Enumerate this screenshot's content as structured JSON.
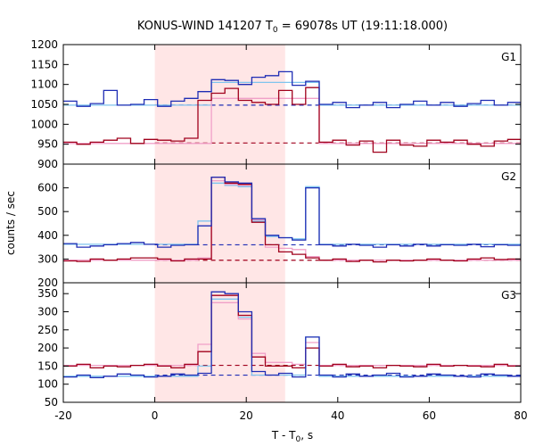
{
  "chart_data": {
    "type": "line",
    "title_main": "KONUS-WIND 141207 T",
    "title_sub": "0",
    "title_rest": " = 69078s UT (19:11:18.000)",
    "xlabel_main": "T - T",
    "xlabel_sub": "0",
    "xlabel_rest": ", s",
    "ylabel": "counts / sec",
    "xlim": [
      -20,
      80
    ],
    "x_ticks": [
      "-20",
      "0",
      "20",
      "40",
      "60",
      "80"
    ],
    "highlight_interval": [
      0,
      28.5
    ],
    "colors": {
      "dark_blue": "#1f2db4",
      "dark_red": "#a0001c",
      "light_blue": "#7fc4ee",
      "pink": "#f0a0c8",
      "highlight": "#ffe6e6"
    },
    "bin_width": 2.944,
    "bin_start": -20,
    "panels": [
      {
        "label": "G1",
        "ylim": [
          900,
          1200
        ],
        "y_ticks": [
          "900",
          "950",
          "1000",
          "1050",
          "1100",
          "1150",
          "1200"
        ],
        "background": {
          "dark_blue": 1048,
          "dark_red": 953
        },
        "series": {
          "dark_blue": [
            1058,
            1045,
            1052,
            1085,
            1048,
            1050,
            1062,
            1045,
            1058,
            1065,
            1082,
            1112,
            1110,
            1100,
            1118,
            1122,
            1132,
            1098,
            1108,
            1050,
            1055,
            1042,
            1048,
            1055,
            1042,
            1050,
            1058,
            1048,
            1055,
            1045,
            1052,
            1060,
            1048,
            1055,
            1042,
            1050
          ],
          "dark_red": [
            955,
            950,
            955,
            960,
            965,
            952,
            962,
            960,
            958,
            965,
            1060,
            1078,
            1090,
            1060,
            1055,
            1050,
            1085,
            1050,
            1092,
            955,
            960,
            948,
            958,
            930,
            960,
            948,
            945,
            960,
            955,
            960,
            950,
            945,
            958,
            962,
            960,
            952
          ],
          "light_blue": [
            1048,
            1048,
            1048,
            1048,
            1048,
            1048,
            1048,
            1048,
            1048,
            1048,
            1048,
            1105,
            1105,
            1105,
            1105,
            1105,
            1105,
            1105,
            1105,
            1048,
            1048,
            1048,
            1048,
            1048,
            1048,
            1048,
            1048,
            1048,
            1048,
            1048,
            1048,
            1048,
            1048,
            1048,
            1048,
            1048
          ],
          "pink": [
            952,
            952,
            952,
            952,
            952,
            952,
            952,
            952,
            952,
            952,
            952,
            1065,
            1065,
            1065,
            1065,
            1065,
            1065,
            1065,
            1065,
            952,
            952,
            952,
            952,
            952,
            952,
            952,
            952,
            952,
            952,
            952,
            952,
            952,
            952,
            952,
            952,
            952
          ]
        }
      },
      {
        "label": "G2",
        "ylim": [
          200,
          700
        ],
        "y_ticks": [
          "200",
          "300",
          "400",
          "500",
          "600"
        ],
        "background": {
          "dark_blue": 360,
          "dark_red": 295
        },
        "series": {
          "dark_blue": [
            365,
            350,
            355,
            360,
            365,
            370,
            362,
            350,
            358,
            360,
            440,
            645,
            625,
            620,
            470,
            400,
            390,
            380,
            600,
            360,
            355,
            362,
            358,
            350,
            360,
            355,
            362,
            355,
            360,
            358,
            362,
            352,
            360,
            358,
            365,
            360
          ],
          "dark_red": [
            292,
            290,
            300,
            295,
            300,
            305,
            305,
            300,
            292,
            300,
            300,
            645,
            620,
            615,
            455,
            360,
            330,
            320,
            305,
            295,
            300,
            290,
            295,
            288,
            295,
            292,
            295,
            300,
            295,
            292,
            300,
            305,
            298,
            300,
            292,
            300
          ],
          "light_blue": [
            362,
            362,
            362,
            362,
            362,
            362,
            362,
            362,
            362,
            362,
            460,
            620,
            610,
            605,
            460,
            395,
            390,
            385,
            605,
            362,
            362,
            362,
            362,
            362,
            362,
            362,
            362,
            362,
            362,
            362,
            362,
            362,
            362,
            362,
            362,
            362
          ],
          "pink": [
            295,
            295,
            295,
            295,
            295,
            295,
            295,
            295,
            295,
            295,
            305,
            630,
            615,
            610,
            465,
            350,
            345,
            340,
            310,
            295,
            295,
            295,
            295,
            295,
            295,
            295,
            295,
            295,
            295,
            295,
            295,
            295,
            295,
            295,
            295,
            295
          ]
        }
      },
      {
        "label": "G3",
        "ylim": [
          50,
          380
        ],
        "y_ticks": [
          "50",
          "100",
          "150",
          "200",
          "250",
          "300",
          "350"
        ],
        "background": {
          "dark_blue": 125,
          "dark_red": 152
        },
        "series": {
          "dark_blue": [
            120,
            125,
            118,
            122,
            128,
            125,
            120,
            122,
            128,
            125,
            130,
            355,
            350,
            300,
            135,
            125,
            130,
            120,
            230,
            125,
            120,
            128,
            122,
            125,
            130,
            120,
            122,
            128,
            125,
            122,
            120,
            128,
            125,
            122,
            120,
            125
          ],
          "dark_red": [
            150,
            155,
            145,
            150,
            148,
            152,
            155,
            150,
            145,
            155,
            190,
            345,
            345,
            290,
            175,
            150,
            150,
            145,
            200,
            150,
            155,
            148,
            150,
            145,
            152,
            150,
            148,
            155,
            150,
            152,
            150,
            148,
            155,
            150,
            152,
            150
          ],
          "light_blue": [
            122,
            122,
            122,
            122,
            122,
            122,
            122,
            122,
            122,
            122,
            150,
            335,
            335,
            285,
            125,
            125,
            125,
            125,
            230,
            122,
            122,
            122,
            122,
            122,
            122,
            122,
            122,
            122,
            122,
            122,
            122,
            122,
            122,
            122,
            122,
            122
          ],
          "pink": [
            152,
            152,
            152,
            152,
            152,
            152,
            152,
            152,
            152,
            152,
            210,
            325,
            325,
            280,
            185,
            160,
            160,
            155,
            215,
            152,
            152,
            152,
            152,
            152,
            152,
            152,
            152,
            152,
            152,
            152,
            152,
            152,
            152,
            152,
            152,
            152
          ]
        }
      }
    ]
  }
}
